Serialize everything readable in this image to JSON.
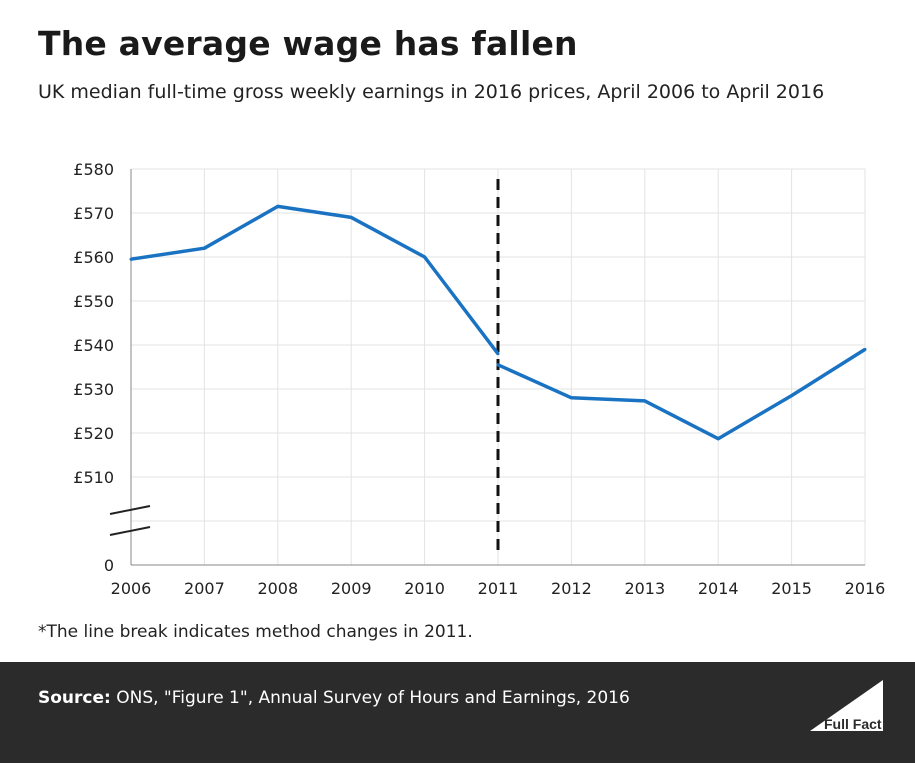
{
  "title": "The average wage has fallen",
  "subtitle": "UK median full-time gross weekly earnings in 2016 prices, April 2006 to April 2016",
  "footnote": "*The line break indicates method changes in 2011.",
  "source": {
    "label": "Source:",
    "text": "ONS, \"Figure 1\", Annual Survey of Hours and Earnings, 2016"
  },
  "logo_text": "Full Fact",
  "colors": {
    "line": "#1a73c2",
    "footer_bg": "#2b2b2b",
    "grid": "#e3e3e3"
  },
  "chart_data": {
    "type": "line",
    "x": [
      2006,
      2007,
      2008,
      2009,
      2010,
      2011,
      2012,
      2013,
      2014,
      2015,
      2016
    ],
    "x_tick_labels": [
      "2006",
      "2007",
      "2008",
      "2009",
      "2010",
      "2011",
      "2012",
      "2013",
      "2014",
      "2015",
      "2016"
    ],
    "y_tick_labels": [
      "£580",
      "£570",
      "£560",
      "£550",
      "£540",
      "£530",
      "£520",
      "£510",
      "0"
    ],
    "y_ticks": [
      580,
      570,
      560,
      550,
      540,
      530,
      520,
      510
    ],
    "ylim": [
      510,
      580
    ],
    "y_axis_break": true,
    "grid": true,
    "method_change_marker": 2011,
    "series": [
      {
        "segment": "before_method_change",
        "x": [
          2006,
          2007,
          2008,
          2009,
          2010,
          2011
        ],
        "values": [
          559.5,
          562,
          571.5,
          569,
          560,
          538
        ]
      },
      {
        "segment": "after_method_change",
        "x": [
          2011,
          2012,
          2013,
          2014,
          2015,
          2016
        ],
        "values": [
          535.5,
          528,
          527.3,
          518.7,
          528.5,
          539
        ]
      }
    ]
  }
}
